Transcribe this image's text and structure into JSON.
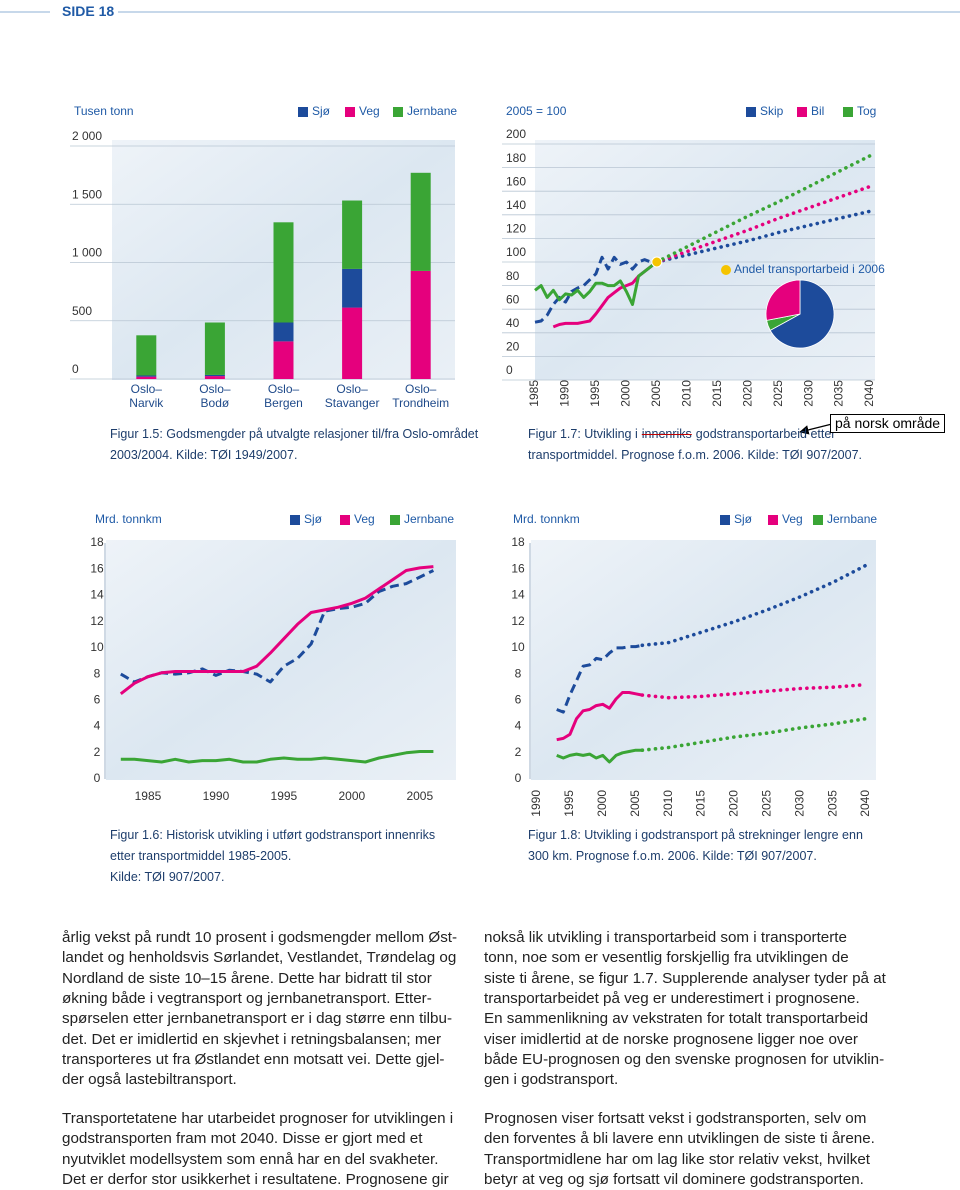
{
  "header": {
    "page": "SIDE 18"
  },
  "chart_data": [
    {
      "type": "bar",
      "stacked": true,
      "y_label": "Tusen tonn",
      "categories": [
        "Oslo–\nNarvik",
        "Oslo–\nBodø",
        "Oslo–\nBergen",
        "Oslo–\nStavanger",
        "Oslo–\nTrondheim"
      ],
      "series": [
        {
          "name": "Sjø",
          "color": "#1d4b9b",
          "values": [
            10,
            10,
            162,
            332,
            0
          ]
        },
        {
          "name": "Veg",
          "color": "#e5007d",
          "values": [
            20,
            25,
            323,
            613,
            928
          ]
        },
        {
          "name": "Jernbane",
          "color": "#3aa535",
          "values": [
            345,
            450,
            860,
            587,
            842
          ]
        }
      ],
      "ylim": [
        0,
        2000
      ],
      "yticks": [
        0,
        500,
        {
          "value": 1000,
          "label": "1 000"
        },
        {
          "value": 1500,
          "label": "1 500"
        },
        {
          "value": 2000,
          "label": "2 000"
        }
      ],
      "grid": true,
      "caption": [
        "Figur 1.5: Godsmengder på utvalgte relasjoner til/fra Oslo-området",
        "2003/2004. Kilde: TØI 1949/2007."
      ]
    },
    {
      "type": "line",
      "y_label": "2005 = 100",
      "x": [
        1985,
        1986,
        1987,
        1988,
        1989,
        1990,
        1991,
        1992,
        1993,
        1994,
        1995,
        1996,
        1997,
        1998,
        1999,
        2000,
        2001,
        2002,
        2003,
        2004,
        2005,
        2010,
        2015,
        2020,
        2025,
        2030,
        2035,
        2040
      ],
      "forecast_from": 2005,
      "series": [
        {
          "name": "Skip",
          "color": "#1d4b9b",
          "line_style": "dashed",
          "values": [
            49,
            50,
            55,
            64,
            70,
            66,
            75,
            78,
            80,
            85,
            90,
            104,
            94,
            104,
            98,
            100,
            94,
            100,
            102,
            100,
            100,
            106,
            112,
            118,
            125,
            131,
            137,
            143
          ]
        },
        {
          "name": "Bil",
          "color": "#e5007d",
          "line_style": "solid",
          "values": [
            null,
            null,
            null,
            45,
            47,
            48,
            48,
            48,
            49,
            50,
            56,
            63,
            70,
            74,
            78,
            80,
            82,
            88,
            92,
            96,
            100,
            109,
            118,
            127,
            137,
            146,
            155,
            164
          ]
        },
        {
          "name": "Tog",
          "color": "#3aa535",
          "line_style": "solid",
          "values": [
            76,
            80,
            70,
            76,
            68,
            73,
            72,
            76,
            70,
            75,
            82,
            82,
            80,
            80,
            84,
            75,
            64,
            88,
            92,
            96,
            100,
            113,
            126,
            139,
            151,
            164,
            177,
            190
          ]
        }
      ],
      "xlim": [
        1985,
        2040
      ],
      "xticks": [
        1985,
        1990,
        1995,
        2000,
        2005,
        2010,
        2015,
        2020,
        2025,
        2030,
        2035,
        2040
      ],
      "ylim": [
        0,
        200
      ],
      "yticks": [
        0,
        20,
        40,
        60,
        80,
        100,
        120,
        140,
        160,
        180,
        200
      ],
      "grid": true,
      "caption": [
        "Figur 1.7: Utvikling i",
        "godstransportarbeid etter",
        "transportmiddel. Prognose f.o.m. 2006. Kilde: TØI 907/2007."
      ],
      "struck_text": "innenriks",
      "annotation": "på norsk område"
    },
    {
      "type": "pie",
      "title": "Andel transportarbeid i 2006",
      "values": [
        67,
        5,
        28
      ],
      "colors": [
        "#1d4b9b",
        "#3aa535",
        "#e5007d"
      ]
    },
    {
      "type": "line",
      "y_label": "Mrd. tonnkm",
      "x": [
        1983,
        1984,
        1985,
        1986,
        1987,
        1988,
        1989,
        1990,
        1991,
        1992,
        1993,
        1994,
        1995,
        1996,
        1997,
        1998,
        1999,
        2000,
        2001,
        2002,
        2003,
        2004,
        2005,
        2006
      ],
      "series": [
        {
          "name": "Sjø",
          "color": "#1d4b9b",
          "line_style": "dashed",
          "values": [
            8.0,
            7.4,
            7.8,
            8.1,
            8.0,
            8.1,
            8.4,
            7.9,
            8.3,
            8.2,
            8.0,
            7.4,
            8.6,
            9.2,
            10.3,
            12.8,
            13.0,
            13.1,
            13.4,
            14.3,
            14.7,
            14.9,
            15.4,
            15.9
          ]
        },
        {
          "name": "Veg",
          "color": "#e5007d",
          "line_style": "solid",
          "values": [
            6.5,
            7.3,
            7.8,
            8.1,
            8.2,
            8.2,
            8.2,
            8.2,
            8.2,
            8.2,
            8.6,
            9.6,
            10.7,
            11.8,
            12.7,
            12.9,
            13.1,
            13.4,
            13.8,
            14.5,
            15.2,
            15.9,
            16.1,
            16.2
          ]
        },
        {
          "name": "Jernbane",
          "color": "#3aa535",
          "line_style": "solid",
          "values": [
            1.5,
            1.5,
            1.4,
            1.3,
            1.5,
            1.3,
            1.4,
            1.4,
            1.5,
            1.3,
            1.3,
            1.5,
            1.6,
            1.5,
            1.5,
            1.6,
            1.5,
            1.4,
            1.3,
            1.6,
            1.8,
            2.0,
            2.1,
            2.1
          ]
        }
      ],
      "xlim": [
        1982.5,
        2007
      ],
      "xticks": [
        1985,
        1990,
        1995,
        2000,
        2005
      ],
      "ylim": [
        0,
        18
      ],
      "yticks": [
        0,
        2,
        4,
        6,
        8,
        10,
        12,
        14,
        16,
        18
      ],
      "grid": false,
      "caption": [
        "Figur 1.6: Historisk utvikling i utført godstransport innenriks",
        "etter transportmiddel 1985-2005.",
        "Kilde: TØI 907/2007."
      ]
    },
    {
      "type": "line",
      "y_label": "Mrd. tonnkm",
      "x": [
        1993,
        1994,
        1995,
        1996,
        1997,
        1998,
        1999,
        2000,
        2001,
        2002,
        2003,
        2004,
        2005,
        2006,
        2010,
        2015,
        2020,
        2025,
        2030,
        2035,
        2040
      ],
      "forecast_from": 2006,
      "series": [
        {
          "name": "Sjø",
          "color": "#1d4b9b",
          "line_style": "dashed",
          "values": [
            5.3,
            5.1,
            6.4,
            7.5,
            8.6,
            8.7,
            9.2,
            9.1,
            9.6,
            10.0,
            10.0,
            10.1,
            10.1,
            10.2,
            10.4,
            11.2,
            12.0,
            12.9,
            13.9,
            15.0,
            16.3
          ]
        },
        {
          "name": "Veg",
          "color": "#e5007d",
          "line_style": "solid",
          "values": [
            3.0,
            3.1,
            3.4,
            4.6,
            5.2,
            5.3,
            5.6,
            5.7,
            5.4,
            6.1,
            6.6,
            6.6,
            6.5,
            6.4,
            6.2,
            6.3,
            6.5,
            6.7,
            6.9,
            7.0,
            7.2
          ]
        },
        {
          "name": "Jernbane",
          "color": "#3aa535",
          "line_style": "solid",
          "values": [
            1.8,
            1.6,
            1.8,
            1.9,
            1.8,
            1.9,
            1.6,
            1.8,
            1.3,
            1.8,
            2.0,
            2.1,
            2.2,
            2.2,
            2.4,
            2.8,
            3.2,
            3.5,
            3.9,
            4.2,
            4.6
          ]
        }
      ],
      "xlim": [
        1990,
        2040
      ],
      "xticks": [
        1990,
        1995,
        2000,
        2005,
        2010,
        2015,
        2020,
        2025,
        2030,
        2035,
        2040
      ],
      "ylim": [
        0,
        18
      ],
      "yticks": [
        0,
        2,
        4,
        6,
        8,
        10,
        12,
        14,
        16,
        18
      ],
      "grid": false,
      "caption": [
        "Figur 1.8: Utvikling i godstransport på strekninger lengre enn",
        "300 km. Prognose f.o.m. 2006. Kilde: TØI 907/2007."
      ]
    }
  ],
  "body": {
    "left": [
      [
        "årlig vekst på rundt 10 prosent i godsmengder mellom Øst-",
        "landet og henholdsvis Sørlandet, Vestlandet, Trøndelag og",
        "Nordland de siste 10–15 årene. Dette har bidratt til stor",
        "økning både i vegtransport og jernbanetransport. Etter-",
        "spørselen etter jernbanetransport er i dag større enn tilbu-",
        "det. Det er imidlertid en skjevhet i retningsbalansen; mer",
        "transporteres ut fra Østlandet enn motsatt vei. Dette gjel-",
        "der også lastebiltransport."
      ],
      [
        "Transportetatene har utarbeidet prognoser for utviklingen i",
        "godstransporten fram mot 2040. Disse er gjort med et",
        "nyutviklet modellsystem som ennå har en del svakheter.",
        "Det er derfor stor usikkerhet i resultatene. Prognosene gir"
      ]
    ],
    "right": [
      [
        "nokså lik utvikling i transportarbeid som i transporterte",
        "tonn, noe som er vesentlig forskjellig fra utviklingen de",
        "siste ti årene, se figur 1.7. Supplerende analyser tyder på at",
        "transportarbeidet på veg er underestimert i prognosene.",
        "En sammenlikning av vekstraten for totalt transportarbeid",
        "viser imidlertid at de norske prognosene ligger noe over",
        "både EU-prognosen og den svenske prognosen for utviklin-",
        "gen i godstransport."
      ],
      [
        "Prognosen viser fortsatt vekst i godstransporten, selv om",
        "den forventes å bli lavere enn utviklingen de siste ti årene.",
        "Transportmidlene har om lag like stor relativ vekst, hvilket",
        "betyr at veg og sjø fortsatt vil dominere godstransporten."
      ]
    ]
  }
}
